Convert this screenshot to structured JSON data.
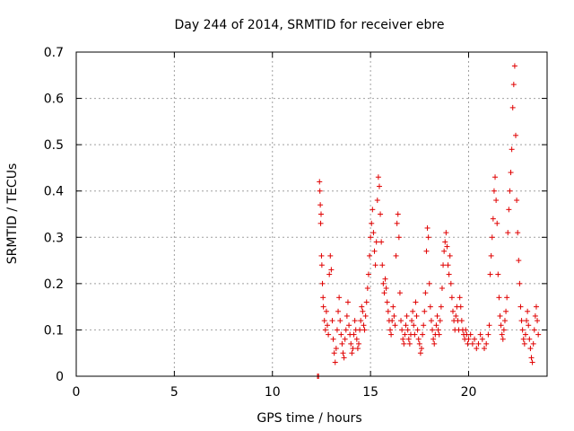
{
  "chart_data": {
    "type": "scatter",
    "title": "Day 244 of 2014, SRMTID for receiver ebre",
    "xlabel": "GPS time / hours",
    "ylabel": "SRMTID / TECUs",
    "xlim": [
      0,
      24
    ],
    "ylim": [
      0,
      0.7
    ],
    "xticks": [
      0,
      5,
      10,
      15,
      20
    ],
    "yticks": [
      0,
      0.1,
      0.2,
      0.3,
      0.4,
      0.5,
      0.6,
      0.7
    ],
    "xtick_labels": [
      "0",
      "5",
      "10",
      "15",
      "20"
    ],
    "ytick_labels": [
      "0",
      "0.1",
      "0.2",
      "0.3",
      "0.4",
      "0.5",
      "0.6",
      "0.7"
    ],
    "grid": true,
    "marker": "+",
    "series_color": "#e00000",
    "series": [
      {
        "name": "SRMTID",
        "points": [
          [
            12.3,
            0.0
          ],
          [
            12.35,
            0.0
          ],
          [
            12.4,
            0.42
          ],
          [
            12.42,
            0.4
          ],
          [
            12.44,
            0.37
          ],
          [
            12.46,
            0.33
          ],
          [
            12.48,
            0.35
          ],
          [
            12.5,
            0.26
          ],
          [
            12.52,
            0.24
          ],
          [
            12.55,
            0.2
          ],
          [
            12.58,
            0.17
          ],
          [
            12.6,
            0.15
          ],
          [
            12.65,
            0.12
          ],
          [
            12.7,
            0.1
          ],
          [
            12.75,
            0.14
          ],
          [
            12.8,
            0.11
          ],
          [
            12.85,
            0.09
          ],
          [
            12.9,
            0.22
          ],
          [
            12.95,
            0.26
          ],
          [
            13.0,
            0.23
          ],
          [
            13.05,
            0.12
          ],
          [
            13.1,
            0.08
          ],
          [
            13.15,
            0.05
          ],
          [
            13.2,
            0.03
          ],
          [
            13.25,
            0.06
          ],
          [
            13.3,
            0.1
          ],
          [
            13.35,
            0.14
          ],
          [
            13.4,
            0.17
          ],
          [
            13.45,
            0.12
          ],
          [
            13.5,
            0.09
          ],
          [
            13.55,
            0.07
          ],
          [
            13.6,
            0.05
          ],
          [
            13.65,
            0.04
          ],
          [
            13.7,
            0.08
          ],
          [
            13.75,
            0.1
          ],
          [
            13.8,
            0.13
          ],
          [
            13.85,
            0.16
          ],
          [
            13.9,
            0.11
          ],
          [
            13.95,
            0.09
          ],
          [
            14.0,
            0.07
          ],
          [
            14.05,
            0.05
          ],
          [
            14.1,
            0.06
          ],
          [
            14.15,
            0.09
          ],
          [
            14.2,
            0.12
          ],
          [
            14.25,
            0.1
          ],
          [
            14.3,
            0.08
          ],
          [
            14.35,
            0.06
          ],
          [
            14.4,
            0.07
          ],
          [
            14.45,
            0.1
          ],
          [
            14.5,
            0.12
          ],
          [
            14.55,
            0.15
          ],
          [
            14.6,
            0.14
          ],
          [
            14.65,
            0.11
          ],
          [
            14.7,
            0.1
          ],
          [
            14.75,
            0.13
          ],
          [
            14.8,
            0.16
          ],
          [
            14.85,
            0.19
          ],
          [
            14.9,
            0.22
          ],
          [
            14.95,
            0.26
          ],
          [
            15.0,
            0.3
          ],
          [
            15.05,
            0.33
          ],
          [
            15.1,
            0.36
          ],
          [
            15.15,
            0.31
          ],
          [
            15.2,
            0.27
          ],
          [
            15.25,
            0.24
          ],
          [
            15.3,
            0.29
          ],
          [
            15.35,
            0.38
          ],
          [
            15.4,
            0.43
          ],
          [
            15.45,
            0.41
          ],
          [
            15.5,
            0.35
          ],
          [
            15.55,
            0.29
          ],
          [
            15.6,
            0.24
          ],
          [
            15.65,
            0.2
          ],
          [
            15.7,
            0.18
          ],
          [
            15.75,
            0.21
          ],
          [
            15.8,
            0.19
          ],
          [
            15.85,
            0.16
          ],
          [
            15.9,
            0.14
          ],
          [
            15.95,
            0.12
          ],
          [
            16.0,
            0.1
          ],
          [
            16.05,
            0.09
          ],
          [
            16.1,
            0.12
          ],
          [
            16.15,
            0.15
          ],
          [
            16.2,
            0.13
          ],
          [
            16.25,
            0.11
          ],
          [
            16.3,
            0.26
          ],
          [
            16.35,
            0.33
          ],
          [
            16.4,
            0.35
          ],
          [
            16.45,
            0.3
          ],
          [
            16.5,
            0.18
          ],
          [
            16.55,
            0.12
          ],
          [
            16.6,
            0.1
          ],
          [
            16.65,
            0.08
          ],
          [
            16.7,
            0.07
          ],
          [
            16.75,
            0.09
          ],
          [
            16.8,
            0.11
          ],
          [
            16.85,
            0.13
          ],
          [
            16.9,
            0.1
          ],
          [
            16.95,
            0.08
          ],
          [
            17.0,
            0.07
          ],
          [
            17.05,
            0.09
          ],
          [
            17.1,
            0.12
          ],
          [
            17.15,
            0.14
          ],
          [
            17.2,
            0.11
          ],
          [
            17.25,
            0.09
          ],
          [
            17.3,
            0.16
          ],
          [
            17.35,
            0.13
          ],
          [
            17.4,
            0.1
          ],
          [
            17.45,
            0.08
          ],
          [
            17.5,
            0.07
          ],
          [
            17.55,
            0.05
          ],
          [
            17.6,
            0.06
          ],
          [
            17.65,
            0.09
          ],
          [
            17.7,
            0.11
          ],
          [
            17.75,
            0.14
          ],
          [
            17.8,
            0.18
          ],
          [
            17.85,
            0.27
          ],
          [
            17.9,
            0.32
          ],
          [
            17.95,
            0.3
          ],
          [
            18.0,
            0.2
          ],
          [
            18.05,
            0.15
          ],
          [
            18.1,
            0.12
          ],
          [
            18.15,
            0.1
          ],
          [
            18.2,
            0.08
          ],
          [
            18.25,
            0.07
          ],
          [
            18.3,
            0.09
          ],
          [
            18.35,
            0.11
          ],
          [
            18.4,
            0.13
          ],
          [
            18.45,
            0.1
          ],
          [
            18.5,
            0.09
          ],
          [
            18.55,
            0.12
          ],
          [
            18.6,
            0.15
          ],
          [
            18.65,
            0.19
          ],
          [
            18.7,
            0.24
          ],
          [
            18.75,
            0.27
          ],
          [
            18.8,
            0.29
          ],
          [
            18.85,
            0.31
          ],
          [
            18.9,
            0.28
          ],
          [
            18.95,
            0.24
          ],
          [
            19.0,
            0.22
          ],
          [
            19.05,
            0.26
          ],
          [
            19.1,
            0.2
          ],
          [
            19.15,
            0.17
          ],
          [
            19.2,
            0.14
          ],
          [
            19.25,
            0.12
          ],
          [
            19.3,
            0.1
          ],
          [
            19.35,
            0.13
          ],
          [
            19.4,
            0.15
          ],
          [
            19.45,
            0.12
          ],
          [
            19.5,
            0.1
          ],
          [
            19.55,
            0.17
          ],
          [
            19.6,
            0.15
          ],
          [
            19.65,
            0.12
          ],
          [
            19.7,
            0.1
          ],
          [
            19.75,
            0.09
          ],
          [
            19.8,
            0.08
          ],
          [
            19.85,
            0.1
          ],
          [
            19.9,
            0.09
          ],
          [
            19.95,
            0.07
          ],
          [
            20.0,
            0.08
          ],
          [
            20.1,
            0.09
          ],
          [
            20.2,
            0.07
          ],
          [
            20.3,
            0.08
          ],
          [
            20.4,
            0.06
          ],
          [
            20.5,
            0.07
          ],
          [
            20.6,
            0.09
          ],
          [
            20.7,
            0.08
          ],
          [
            20.8,
            0.06
          ],
          [
            20.9,
            0.07
          ],
          [
            21.0,
            0.09
          ],
          [
            21.05,
            0.11
          ],
          [
            21.1,
            0.22
          ],
          [
            21.15,
            0.26
          ],
          [
            21.2,
            0.3
          ],
          [
            21.25,
            0.34
          ],
          [
            21.3,
            0.4
          ],
          [
            21.35,
            0.43
          ],
          [
            21.4,
            0.38
          ],
          [
            21.45,
            0.33
          ],
          [
            21.5,
            0.22
          ],
          [
            21.55,
            0.17
          ],
          [
            21.6,
            0.13
          ],
          [
            21.65,
            0.11
          ],
          [
            21.7,
            0.09
          ],
          [
            21.75,
            0.08
          ],
          [
            21.8,
            0.1
          ],
          [
            21.85,
            0.12
          ],
          [
            21.9,
            0.14
          ],
          [
            21.95,
            0.17
          ],
          [
            22.0,
            0.31
          ],
          [
            22.05,
            0.36
          ],
          [
            22.1,
            0.4
          ],
          [
            22.15,
            0.44
          ],
          [
            22.2,
            0.49
          ],
          [
            22.25,
            0.58
          ],
          [
            22.3,
            0.63
          ],
          [
            22.35,
            0.67
          ],
          [
            22.4,
            0.52
          ],
          [
            22.45,
            0.38
          ],
          [
            22.5,
            0.31
          ],
          [
            22.55,
            0.25
          ],
          [
            22.6,
            0.2
          ],
          [
            22.65,
            0.15
          ],
          [
            22.7,
            0.12
          ],
          [
            22.75,
            0.1
          ],
          [
            22.8,
            0.08
          ],
          [
            22.85,
            0.07
          ],
          [
            22.9,
            0.09
          ],
          [
            22.95,
            0.12
          ],
          [
            23.0,
            0.14
          ],
          [
            23.05,
            0.11
          ],
          [
            23.1,
            0.08
          ],
          [
            23.15,
            0.06
          ],
          [
            23.2,
            0.04
          ],
          [
            23.25,
            0.03
          ],
          [
            23.3,
            0.07
          ],
          [
            23.35,
            0.1
          ],
          [
            23.4,
            0.13
          ],
          [
            23.45,
            0.15
          ],
          [
            23.5,
            0.12
          ],
          [
            23.55,
            0.09
          ]
        ]
      }
    ]
  }
}
